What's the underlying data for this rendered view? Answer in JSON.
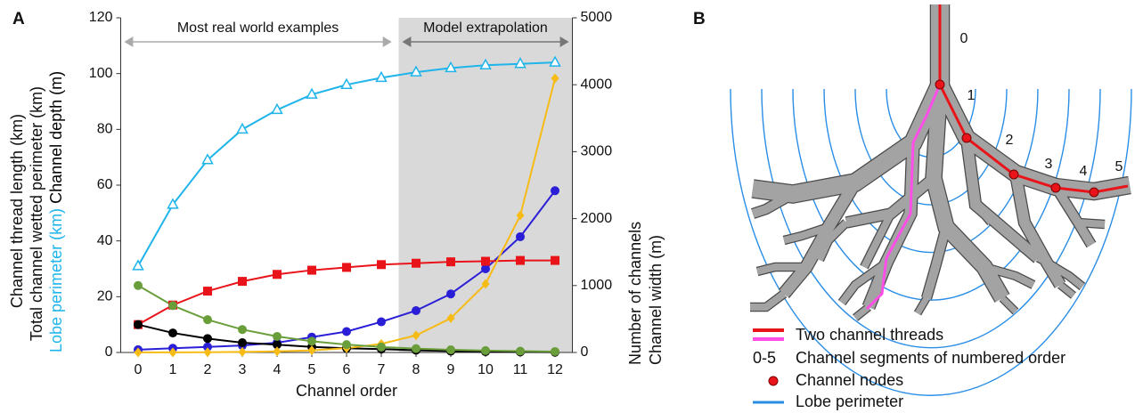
{
  "chart_data": {
    "type": "line",
    "panel_label": "A",
    "x_label": "Channel order",
    "x": [
      0,
      1,
      2,
      3,
      4,
      5,
      6,
      7,
      8,
      9,
      10,
      11,
      12
    ],
    "xlim": [
      -0.5,
      12.5
    ],
    "xticks": [
      0,
      1,
      2,
      3,
      4,
      5,
      6,
      7,
      8,
      9,
      10,
      11,
      12
    ],
    "ylim": [
      0,
      120
    ],
    "yticks": [
      0,
      20,
      40,
      60,
      80,
      100,
      120
    ],
    "y2lim": [
      0,
      5000
    ],
    "y2ticks": [
      0,
      1000,
      2000,
      3000,
      4000,
      5000
    ],
    "shaded_xrange": [
      7.5,
      12.5
    ],
    "shade_color": "#d9d9d9",
    "annotations": [
      {
        "text": "Most real world examples",
        "xrange": [
          -0.4,
          7.3
        ],
        "color": "#aaaaaa"
      },
      {
        "text": "Model extrapolation",
        "xrange": [
          7.6,
          12.4
        ],
        "color": "#777777"
      }
    ],
    "series": [
      {
        "name": "Lobe perimeter (km)",
        "color": "#1fb4ea",
        "marker": "triangle",
        "values": [
          31,
          53,
          69,
          80,
          87,
          92.5,
          96,
          98.5,
          100.5,
          102,
          103,
          103.5,
          104
        ]
      },
      {
        "name": "Total channel wetted perimeter (km)",
        "color": "#2a1ed6",
        "marker": "circle",
        "values": [
          1,
          1.5,
          2,
          2.5,
          3.5,
          5.5,
          7.5,
          11,
          15,
          21,
          30,
          41.5,
          58
        ]
      },
      {
        "name": "Channel thread length (km)",
        "color": "#e8141a",
        "marker": "square",
        "values": [
          10,
          17,
          22,
          25.5,
          28,
          29.5,
          30.5,
          31.5,
          32,
          32.5,
          32.7,
          33,
          33
        ]
      },
      {
        "name": "Channel depth (m)",
        "color": "#000000",
        "marker": "circle",
        "values": [
          10,
          7,
          5,
          3.5,
          2.8,
          2,
          1.5,
          1.2,
          0.8,
          0.5,
          0.3,
          0.2,
          0.1
        ]
      },
      {
        "name": "Number of channels",
        "color": "#f7bb16",
        "marker": "diamond",
        "axis": "y2",
        "values": [
          1,
          2,
          4,
          8,
          16,
          32,
          64,
          128,
          256,
          512,
          1024,
          2048,
          4096
        ]
      },
      {
        "name": "Channel width (m)",
        "color": "#6a9e3a",
        "marker": "circle",
        "axis": "y2",
        "values": [
          1000,
          700,
          490,
          343,
          240,
          168,
          118,
          82,
          58,
          40,
          28,
          20,
          14
        ]
      }
    ]
  },
  "diagram": {
    "panel_label": "B",
    "segment_labels": [
      "0",
      "1",
      "2",
      "3",
      "4",
      "5"
    ],
    "legend": {
      "threads": "Two channel threads",
      "segments_key": "0-5",
      "segments": "Channel segments of numbered order",
      "nodes": "Channel nodes",
      "lobe": "Lobe perimeter"
    }
  }
}
